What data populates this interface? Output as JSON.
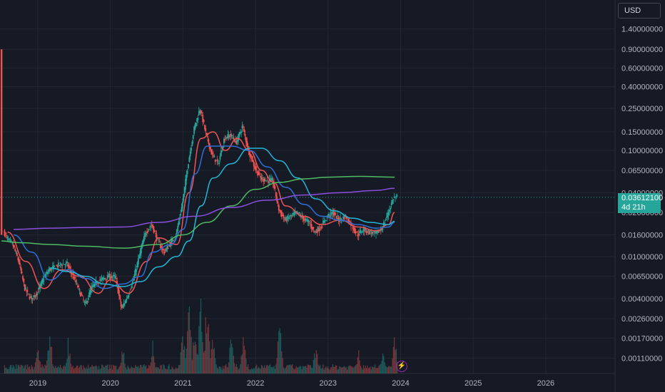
{
  "header": {
    "currency": "USD"
  },
  "price_tag": {
    "price": "0.03612100",
    "countdown": "4d 21h"
  },
  "colors": {
    "background": "#161a25",
    "grid": "#232632",
    "up": "#26a69a",
    "down": "#ef5350",
    "ma_red": "#f05454",
    "ma_blue": "#2f6fd6",
    "ma_cyan": "#24b6d8",
    "ma_green": "#4fbb62",
    "ma_purple": "#8a4fe0"
  },
  "icons": {
    "lightning": "lightning-icon"
  },
  "chart_data": {
    "type": "candlestick",
    "title": "",
    "xlabel": "",
    "ylabel": "",
    "y_scale": "log",
    "ylim": [
      0.00095,
      1.6
    ],
    "grid": true,
    "x_ticks": [
      "2019",
      "2020",
      "2021",
      "2022",
      "2023",
      "2024",
      "2025",
      "2026"
    ],
    "y_ticks": [
      "1.40000000",
      "0.90000000",
      "0.60000000",
      "0.40000000",
      "0.25000000",
      "0.15000000",
      "0.10000000",
      "0.06500000",
      "0.04000000",
      "0.02600000",
      "0.01600000",
      "0.01000000",
      "0.00650000",
      "0.00400000",
      "0.00260000",
      "0.00170000",
      "0.00110000"
    ],
    "last_price": 0.036121,
    "price_path": [
      [
        "2018-07",
        0.015
      ],
      [
        "2018-07",
        0.9
      ],
      [
        "2018-07",
        0.02
      ],
      [
        "2018-08",
        0.015
      ],
      [
        "2018-09",
        0.013
      ],
      [
        "2018-10",
        0.009
      ],
      [
        "2018-11",
        0.005
      ],
      [
        "2018-12",
        0.004
      ],
      [
        "2019-01",
        0.0045
      ],
      [
        "2019-02",
        0.006
      ],
      [
        "2019-03",
        0.0075
      ],
      [
        "2019-04",
        0.008
      ],
      [
        "2019-05",
        0.0085
      ],
      [
        "2019-06",
        0.0085
      ],
      [
        "2019-07",
        0.0065
      ],
      [
        "2019-08",
        0.0048
      ],
      [
        "2019-09",
        0.0035
      ],
      [
        "2019-10",
        0.005
      ],
      [
        "2019-11",
        0.0058
      ],
      [
        "2019-12",
        0.0062
      ],
      [
        "2020-01",
        0.0065
      ],
      [
        "2020-02",
        0.0064
      ],
      [
        "2020-03",
        0.0032
      ],
      [
        "2020-04",
        0.0042
      ],
      [
        "2020-05",
        0.0062
      ],
      [
        "2020-06",
        0.0105
      ],
      [
        "2020-07",
        0.017
      ],
      [
        "2020-08",
        0.02
      ],
      [
        "2020-09",
        0.014
      ],
      [
        "2020-10",
        0.011
      ],
      [
        "2020-11",
        0.013
      ],
      [
        "2020-12",
        0.016
      ],
      [
        "2021-01",
        0.03
      ],
      [
        "2021-02",
        0.075
      ],
      [
        "2021-03",
        0.16
      ],
      [
        "2021-04",
        0.25
      ],
      [
        "2021-05",
        0.14
      ],
      [
        "2021-06",
        0.09
      ],
      [
        "2021-07",
        0.075
      ],
      [
        "2021-08",
        0.13
      ],
      [
        "2021-09",
        0.14
      ],
      [
        "2021-10",
        0.12
      ],
      [
        "2021-11",
        0.17
      ],
      [
        "2021-12",
        0.1
      ],
      [
        "2022-01",
        0.07
      ],
      [
        "2022-02",
        0.055
      ],
      [
        "2022-03",
        0.052
      ],
      [
        "2022-04",
        0.052
      ],
      [
        "2022-05",
        0.028
      ],
      [
        "2022-06",
        0.022
      ],
      [
        "2022-07",
        0.024
      ],
      [
        "2022-08",
        0.026
      ],
      [
        "2022-09",
        0.023
      ],
      [
        "2022-10",
        0.021
      ],
      [
        "2022-11",
        0.017
      ],
      [
        "2022-12",
        0.019
      ],
      [
        "2023-01",
        0.024
      ],
      [
        "2023-02",
        0.026
      ],
      [
        "2023-03",
        0.022
      ],
      [
        "2023-04",
        0.024
      ],
      [
        "2023-05",
        0.02
      ],
      [
        "2023-06",
        0.016
      ],
      [
        "2023-07",
        0.018
      ],
      [
        "2023-08",
        0.017
      ],
      [
        "2023-09",
        0.0165
      ],
      [
        "2023-10",
        0.018
      ],
      [
        "2023-11",
        0.025
      ],
      [
        "2023-12",
        0.036121
      ]
    ],
    "series": [
      {
        "color": "#f05454",
        "points": [
          [
            "2018-08",
            0.017
          ],
          [
            "2018-11",
            0.009
          ],
          [
            "2019-02",
            0.005
          ],
          [
            "2019-05",
            0.0075
          ],
          [
            "2019-08",
            0.0065
          ],
          [
            "2019-11",
            0.0045
          ],
          [
            "2020-01",
            0.006
          ],
          [
            "2020-04",
            0.0045
          ],
          [
            "2020-07",
            0.009
          ],
          [
            "2020-09",
            0.015
          ],
          [
            "2020-12",
            0.013
          ],
          [
            "2021-02",
            0.04
          ],
          [
            "2021-04",
            0.13
          ],
          [
            "2021-06",
            0.15
          ],
          [
            "2021-08",
            0.1
          ],
          [
            "2021-10",
            0.13
          ],
          [
            "2021-12",
            0.1
          ],
          [
            "2022-02",
            0.065
          ],
          [
            "2022-04",
            0.05
          ],
          [
            "2022-06",
            0.03
          ],
          [
            "2022-09",
            0.024
          ],
          [
            "2022-12",
            0.02
          ],
          [
            "2023-03",
            0.022
          ],
          [
            "2023-06",
            0.019
          ],
          [
            "2023-09",
            0.0175
          ],
          [
            "2023-11",
            0.02
          ],
          [
            "2023-12",
            0.026
          ]
        ]
      },
      {
        "color": "#2f6fd6",
        "points": [
          [
            "2018-09",
            0.016
          ],
          [
            "2018-12",
            0.011
          ],
          [
            "2019-03",
            0.006
          ],
          [
            "2019-06",
            0.0075
          ],
          [
            "2019-09",
            0.0062
          ],
          [
            "2019-12",
            0.005
          ],
          [
            "2020-03",
            0.0055
          ],
          [
            "2020-06",
            0.0065
          ],
          [
            "2020-08",
            0.011
          ],
          [
            "2020-11",
            0.013
          ],
          [
            "2021-01",
            0.018
          ],
          [
            "2021-03",
            0.06
          ],
          [
            "2021-05",
            0.11
          ],
          [
            "2021-07",
            0.11
          ],
          [
            "2021-09",
            0.11
          ],
          [
            "2021-12",
            0.1
          ],
          [
            "2022-03",
            0.07
          ],
          [
            "2022-06",
            0.045
          ],
          [
            "2022-09",
            0.031
          ],
          [
            "2022-12",
            0.024
          ],
          [
            "2023-03",
            0.022
          ],
          [
            "2023-06",
            0.02
          ],
          [
            "2023-09",
            0.0185
          ],
          [
            "2023-11",
            0.019
          ],
          [
            "2023-12",
            0.021
          ]
        ]
      },
      {
        "color": "#24b6d8",
        "points": [
          [
            "2019-03",
            0.0078
          ],
          [
            "2019-06",
            0.0072
          ],
          [
            "2019-09",
            0.0065
          ],
          [
            "2019-12",
            0.0055
          ],
          [
            "2020-03",
            0.0052
          ],
          [
            "2020-06",
            0.0058
          ],
          [
            "2020-09",
            0.008
          ],
          [
            "2020-12",
            0.01
          ],
          [
            "2021-02",
            0.014
          ],
          [
            "2021-04",
            0.03
          ],
          [
            "2021-06",
            0.055
          ],
          [
            "2021-09",
            0.075
          ],
          [
            "2021-12",
            0.105
          ],
          [
            "2022-02",
            0.105
          ],
          [
            "2022-05",
            0.08
          ],
          [
            "2022-08",
            0.055
          ],
          [
            "2022-11",
            0.035
          ],
          [
            "2023-02",
            0.027
          ],
          [
            "2023-05",
            0.023
          ],
          [
            "2023-08",
            0.021
          ],
          [
            "2023-11",
            0.02
          ],
          [
            "2023-12",
            0.0215
          ]
        ]
      },
      {
        "color": "#4fbb62",
        "points": [
          [
            "2018-07",
            0.014
          ],
          [
            "2018-10",
            0.0135
          ],
          [
            "2019-03",
            0.013
          ],
          [
            "2019-09",
            0.0125
          ],
          [
            "2020-03",
            0.012
          ],
          [
            "2020-09",
            0.013
          ],
          [
            "2021-01",
            0.016
          ],
          [
            "2021-05",
            0.021
          ],
          [
            "2021-09",
            0.03
          ],
          [
            "2022-01",
            0.043
          ],
          [
            "2022-05",
            0.05
          ],
          [
            "2022-09",
            0.054
          ],
          [
            "2023-01",
            0.056
          ],
          [
            "2023-06",
            0.057
          ],
          [
            "2023-12",
            0.056
          ]
        ]
      },
      {
        "color": "#8a4fe0",
        "points": [
          [
            "2018-09",
            0.018
          ],
          [
            "2019-03",
            0.0185
          ],
          [
            "2019-09",
            0.0188
          ],
          [
            "2020-03",
            0.019
          ],
          [
            "2020-09",
            0.021
          ],
          [
            "2021-03",
            0.024
          ],
          [
            "2021-09",
            0.029
          ],
          [
            "2022-03",
            0.034
          ],
          [
            "2022-09",
            0.038
          ],
          [
            "2023-03",
            0.04
          ],
          [
            "2023-09",
            0.042
          ],
          [
            "2023-12",
            0.044
          ]
        ]
      }
    ],
    "volume_peaks": [
      [
        "2018-07",
        0.3
      ],
      [
        "2019-01",
        0.3
      ],
      [
        "2019-03",
        0.5
      ],
      [
        "2019-06",
        0.4
      ],
      [
        "2020-03",
        0.35
      ],
      [
        "2020-08",
        0.4
      ],
      [
        "2021-01",
        0.55
      ],
      [
        "2021-02",
        0.85
      ],
      [
        "2021-03",
        0.6
      ],
      [
        "2021-04",
        1.0
      ],
      [
        "2021-05",
        0.95
      ],
      [
        "2021-06",
        0.5
      ],
      [
        "2021-09",
        0.55
      ],
      [
        "2021-11",
        0.45
      ],
      [
        "2022-05",
        0.6
      ],
      [
        "2022-11",
        0.35
      ],
      [
        "2023-06",
        0.3
      ],
      [
        "2023-10",
        0.3
      ],
      [
        "2023-12",
        0.45
      ]
    ]
  }
}
